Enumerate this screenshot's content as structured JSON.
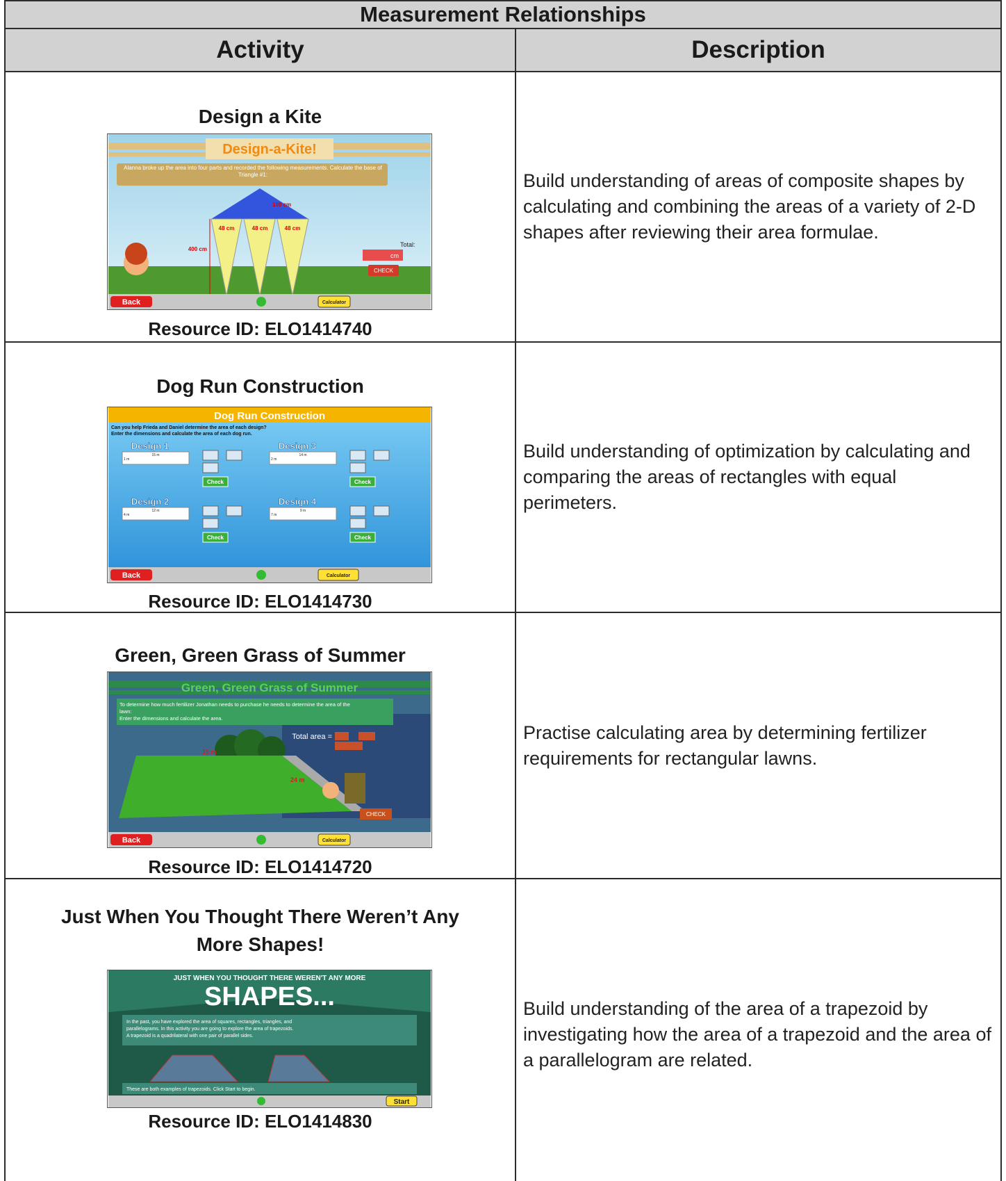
{
  "header": {
    "title": "Measurement Relationships"
  },
  "table": {
    "columns": [
      "Activity",
      "Description"
    ],
    "rows": [
      {
        "activity": "Design a Kite",
        "resource_id": "Resource ID: ELO1414740",
        "description": "Build understanding of areas of composite shapes by calculating and combining the areas of a variety of 2-D shapes after reviewing their area formulae.",
        "screenshot": {
          "title": "Design-a-Kite!",
          "instructions": "Alanna broke up the area into four parts and recorded the following measurements. Calculate the base of Triangle #1:",
          "height_label": "100 cm",
          "base_label": "48 cm",
          "side_label": "400 cm",
          "total": "Total:",
          "unit": "cm",
          "check": "CHECK",
          "back": "Back",
          "calculator": "Calculator"
        }
      },
      {
        "activity": "Dog Run Construction",
        "resource_id": "Resource ID: ELO1414730",
        "description": "Build understanding of optimization by calculating and comparing the areas of rectangles with equal perimeters.",
        "screenshot": {
          "title": "Dog Run Construction",
          "instructions": [
            "Can you help Frieda and Daniel determine the area of each design?",
            "Enter the dimensions and calculate the area of each dog run."
          ],
          "designs": [
            "Design 1",
            "Design 3",
            "Design 2",
            "Design 4"
          ],
          "lengths": [
            "15 m",
            "14 m",
            "12 m",
            "9 m"
          ],
          "widths": [
            "1 m",
            "2 m",
            "4 m",
            "7 m"
          ],
          "check": "Check",
          "back": "Back",
          "calculator": "Calculator"
        }
      },
      {
        "activity": "Green, Green Grass of Summer",
        "resource_id": "Resource ID: ELO1414720",
        "description": "Practise calculating area by determining fertilizer requirements for rectangular lawns.",
        "screenshot": {
          "title": "Green, Green Grass of Summer",
          "instructions": [
            "To determine how much fertilizer Jonathan needs to purchase he needs to determine the area of the",
            "lawn:",
            "Enter the dimensions and calculate the area."
          ],
          "total_area": "Total area =",
          "width_label": "15 m",
          "length_label": "24 m",
          "check": "CHECK",
          "back": "Back",
          "calculator": "Calculator"
        }
      },
      {
        "activity": "Just When You Thought There Weren’t Any More Shapes!",
        "resource_id": "Resource ID: ELO1414830",
        "description": "Build understanding of the area of a trapezoid by investigating how the area of a trapezoid and the area of a parallelogram are related.",
        "screenshot": {
          "kicker": "JUST WHEN YOU THOUGHT THERE WEREN'T ANY MORE",
          "title": "SHAPES...",
          "instructions": [
            "In the past, you have explored the area of squares, rectangles, triangles, and",
            "parallelograms. In this activity you are going to explore the area of trapezoids.",
            "A trapezoid is a quadrilateral with one pair of parallel sides."
          ],
          "prompt": "These are both examples of trapezoids. Click Start to begin.",
          "start": "Start"
        }
      }
    ]
  }
}
